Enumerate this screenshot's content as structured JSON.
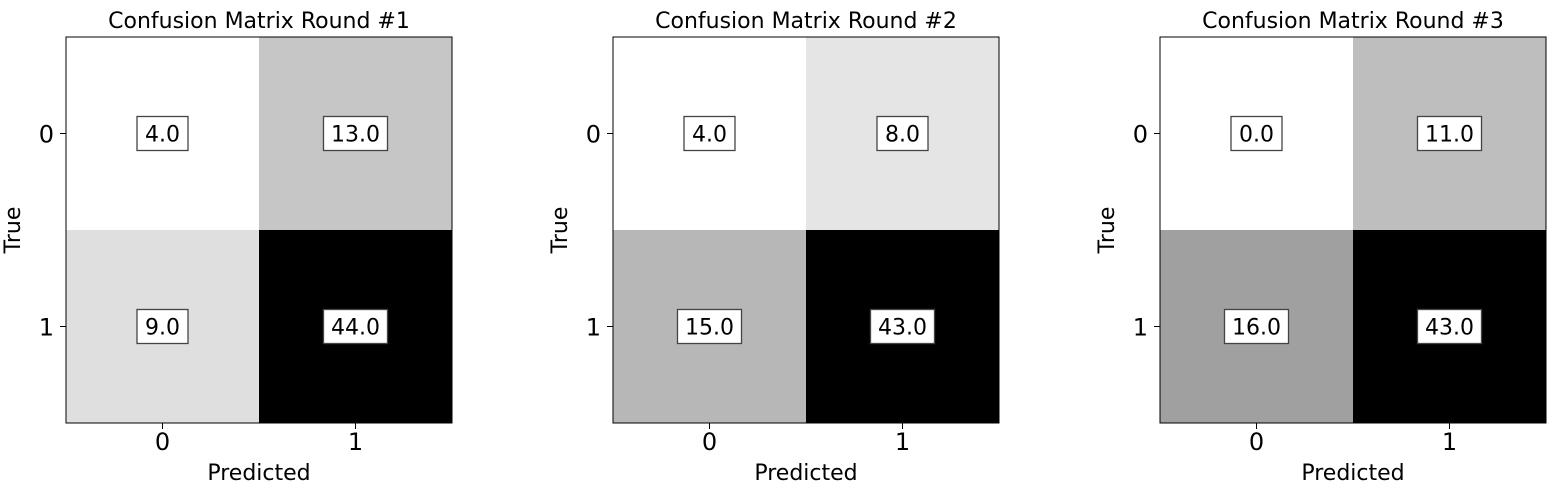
{
  "chart_data": [
    {
      "type": "heatmap",
      "title": "Confusion Matrix Round #1",
      "xlabel": "Predicted",
      "ylabel": "True",
      "x_ticks": [
        "0",
        "1"
      ],
      "y_ticks": [
        "0",
        "1"
      ],
      "values": [
        [
          4.0,
          13.0
        ],
        [
          9.0,
          44.0
        ]
      ],
      "cell_labels": [
        [
          "4.0",
          "13.0"
        ],
        [
          "9.0",
          "44.0"
        ]
      ],
      "colormap": "Greys"
    },
    {
      "type": "heatmap",
      "title": "Confusion Matrix Round #2",
      "xlabel": "Predicted",
      "ylabel": "True",
      "x_ticks": [
        "0",
        "1"
      ],
      "y_ticks": [
        "0",
        "1"
      ],
      "values": [
        [
          4.0,
          8.0
        ],
        [
          15.0,
          43.0
        ]
      ],
      "cell_labels": [
        [
          "4.0",
          "8.0"
        ],
        [
          "15.0",
          "43.0"
        ]
      ],
      "colormap": "Greys"
    },
    {
      "type": "heatmap",
      "title": "Confusion Matrix Round #3",
      "xlabel": "Predicted",
      "ylabel": "True",
      "x_ticks": [
        "0",
        "1"
      ],
      "y_ticks": [
        "0",
        "1"
      ],
      "values": [
        [
          0.0,
          11.0
        ],
        [
          16.0,
          43.0
        ]
      ],
      "cell_labels": [
        [
          "0.0",
          "11.0"
        ],
        [
          "16.0",
          "43.0"
        ]
      ],
      "colormap": "Greys"
    }
  ]
}
